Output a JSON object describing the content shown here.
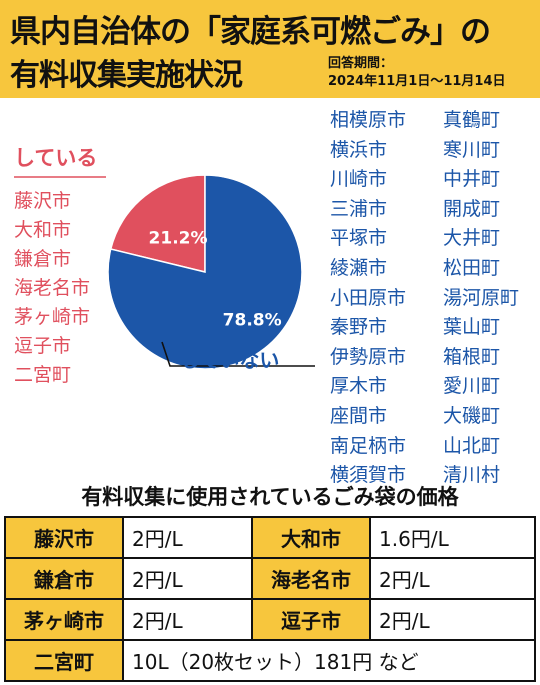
{
  "header": {
    "title_line1": "県内自治体の「家庭系可燃ごみ」の",
    "title_line2": "有料収集実施状況",
    "period_label": "回答期間：",
    "period_value": "2024年11月1日～11月14日"
  },
  "chart_data": {
    "type": "pie",
    "title": "",
    "slices": [
      {
        "name": "している",
        "value": 21.2,
        "label": "21.2%",
        "color": "#e0505e"
      },
      {
        "name": "していない",
        "value": 78.8,
        "label": "78.8%",
        "color": "#1c56a8"
      }
    ]
  },
  "doing": {
    "label": "している",
    "cities": [
      "藤沢市",
      "大和市",
      "鎌倉市",
      "海老名市",
      "茅ヶ崎市",
      "逗子市",
      "二宮町"
    ]
  },
  "not_doing": {
    "label": "していない",
    "column1": [
      "相模原市",
      "横浜市",
      "川崎市",
      "三浦市",
      "平塚市",
      "綾瀬市",
      "小田原市",
      "秦野市",
      "伊勢原市",
      "厚木市",
      "座間市",
      "南足柄市",
      "横須賀市"
    ],
    "column2": [
      "真鶴町",
      "寒川町",
      "中井町",
      "開成町",
      "大井町",
      "松田町",
      "湯河原町",
      "葉山町",
      "箱根町",
      "愛川町",
      "大磯町",
      "山北町",
      "清川村"
    ]
  },
  "prices": {
    "title": "有料収集に使用されているごみ袋の価格",
    "rows": [
      [
        {
          "city": "藤沢市",
          "price": "2円/L"
        },
        {
          "city": "大和市",
          "price": "1.6円/L"
        }
      ],
      [
        {
          "city": "鎌倉市",
          "price": "2円/L"
        },
        {
          "city": "海老名市",
          "price": "2円/L"
        }
      ],
      [
        {
          "city": "茅ヶ崎市",
          "price": "2円/L"
        },
        {
          "city": "逗子市",
          "price": "2円/L"
        }
      ]
    ],
    "last_row": {
      "city": "二宮町",
      "price": "10L（20枚セット）181円 など"
    }
  }
}
